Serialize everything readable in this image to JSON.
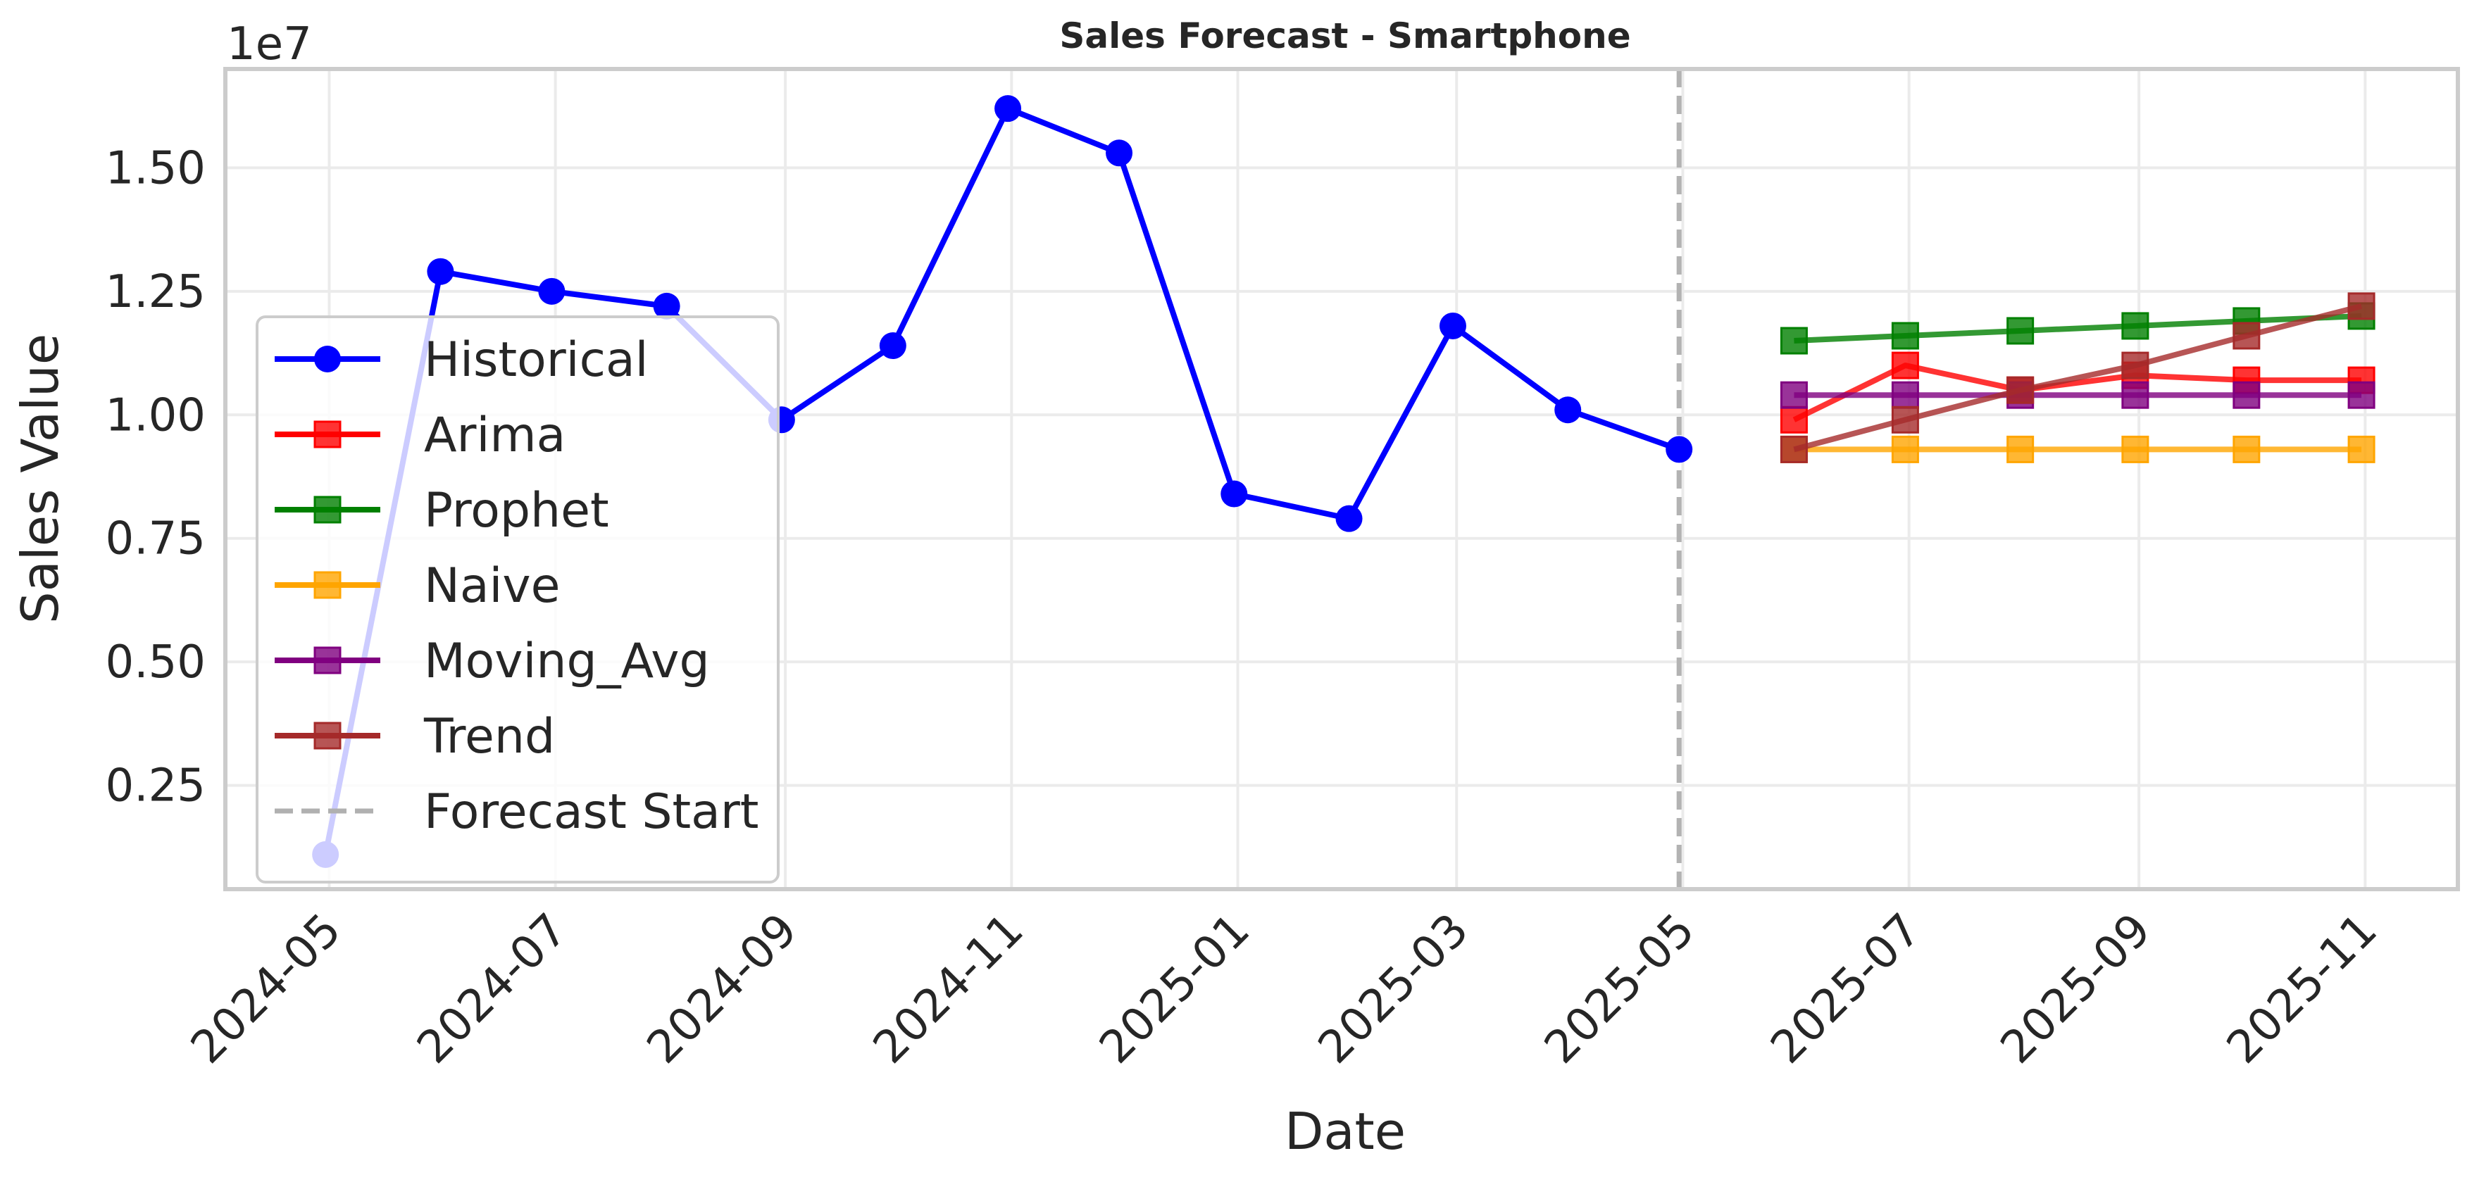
{
  "chart_data": {
    "type": "line",
    "title": "Sales Forecast - Smartphone",
    "xlabel": "Date",
    "ylabel": "Sales Value",
    "y_offset_label": "1e7",
    "y_scale": 10000000,
    "x_ticks": [
      "2024-05",
      "2024-07",
      "2024-09",
      "2024-11",
      "2025-01",
      "2025-03",
      "2025-05",
      "2025-07",
      "2025-09",
      "2025-11"
    ],
    "y_ticks": [
      "0.25",
      "0.50",
      "0.75",
      "1.00",
      "1.25",
      "1.50"
    ],
    "ylim": [
      0.04,
      1.7
    ],
    "xlim": [
      "2024-04-03",
      "2025-11-26"
    ],
    "grid": true,
    "legend_position": "center-left",
    "forecast_start": "2025-04-30",
    "series": [
      {
        "name": "Historical",
        "color": "#0000ff",
        "marker": "circle",
        "x": [
          "2024-04-30",
          "2024-05-31",
          "2024-06-30",
          "2024-07-31",
          "2024-08-31",
          "2024-09-30",
          "2024-10-31",
          "2024-11-30",
          "2024-12-31",
          "2025-01-31",
          "2025-02-28",
          "2025-03-31",
          "2025-04-30"
        ],
        "values": [
          0.11,
          1.29,
          1.25,
          1.22,
          0.99,
          1.14,
          1.62,
          1.53,
          0.84,
          0.79,
          1.18,
          1.01,
          0.93
        ]
      },
      {
        "name": "Arima",
        "color": "#ff0000",
        "marker": "square",
        "x": [
          "2025-05-31",
          "2025-06-30",
          "2025-07-31",
          "2025-08-31",
          "2025-09-30",
          "2025-10-31"
        ],
        "values": [
          0.99,
          1.1,
          1.05,
          1.08,
          1.07,
          1.07
        ]
      },
      {
        "name": "Prophet",
        "color": "#008000",
        "marker": "square",
        "x": [
          "2025-05-31",
          "2025-06-30",
          "2025-07-31",
          "2025-08-31",
          "2025-09-30",
          "2025-10-31"
        ],
        "values": [
          1.15,
          1.16,
          1.17,
          1.18,
          1.19,
          1.2
        ]
      },
      {
        "name": "Naive",
        "color": "#ffa500",
        "marker": "square",
        "x": [
          "2025-05-31",
          "2025-06-30",
          "2025-07-31",
          "2025-08-31",
          "2025-09-30",
          "2025-10-31"
        ],
        "values": [
          0.93,
          0.93,
          0.93,
          0.93,
          0.93,
          0.93
        ]
      },
      {
        "name": "Moving_Avg",
        "color": "#800080",
        "marker": "square",
        "x": [
          "2025-05-31",
          "2025-06-30",
          "2025-07-31",
          "2025-08-31",
          "2025-09-30",
          "2025-10-31"
        ],
        "values": [
          1.04,
          1.04,
          1.04,
          1.04,
          1.04,
          1.04
        ]
      },
      {
        "name": "Trend",
        "color": "#a52a2a",
        "marker": "square",
        "x": [
          "2025-05-31",
          "2025-06-30",
          "2025-07-31",
          "2025-08-31",
          "2025-09-30",
          "2025-10-31"
        ],
        "values": [
          0.93,
          0.99,
          1.05,
          1.1,
          1.16,
          1.22
        ]
      }
    ],
    "legend": [
      {
        "label": "Historical",
        "color": "#0000ff",
        "marker": "circle"
      },
      {
        "label": "Arima",
        "color": "#ff0000",
        "marker": "square"
      },
      {
        "label": "Prophet",
        "color": "#008000",
        "marker": "square"
      },
      {
        "label": "Naive",
        "color": "#ffa500",
        "marker": "square"
      },
      {
        "label": "Moving_Avg",
        "color": "#800080",
        "marker": "square"
      },
      {
        "label": "Trend",
        "color": "#a52a2a",
        "marker": "square"
      },
      {
        "label": "Forecast Start",
        "color": "#b0b0b0",
        "marker": "dashed"
      }
    ]
  }
}
